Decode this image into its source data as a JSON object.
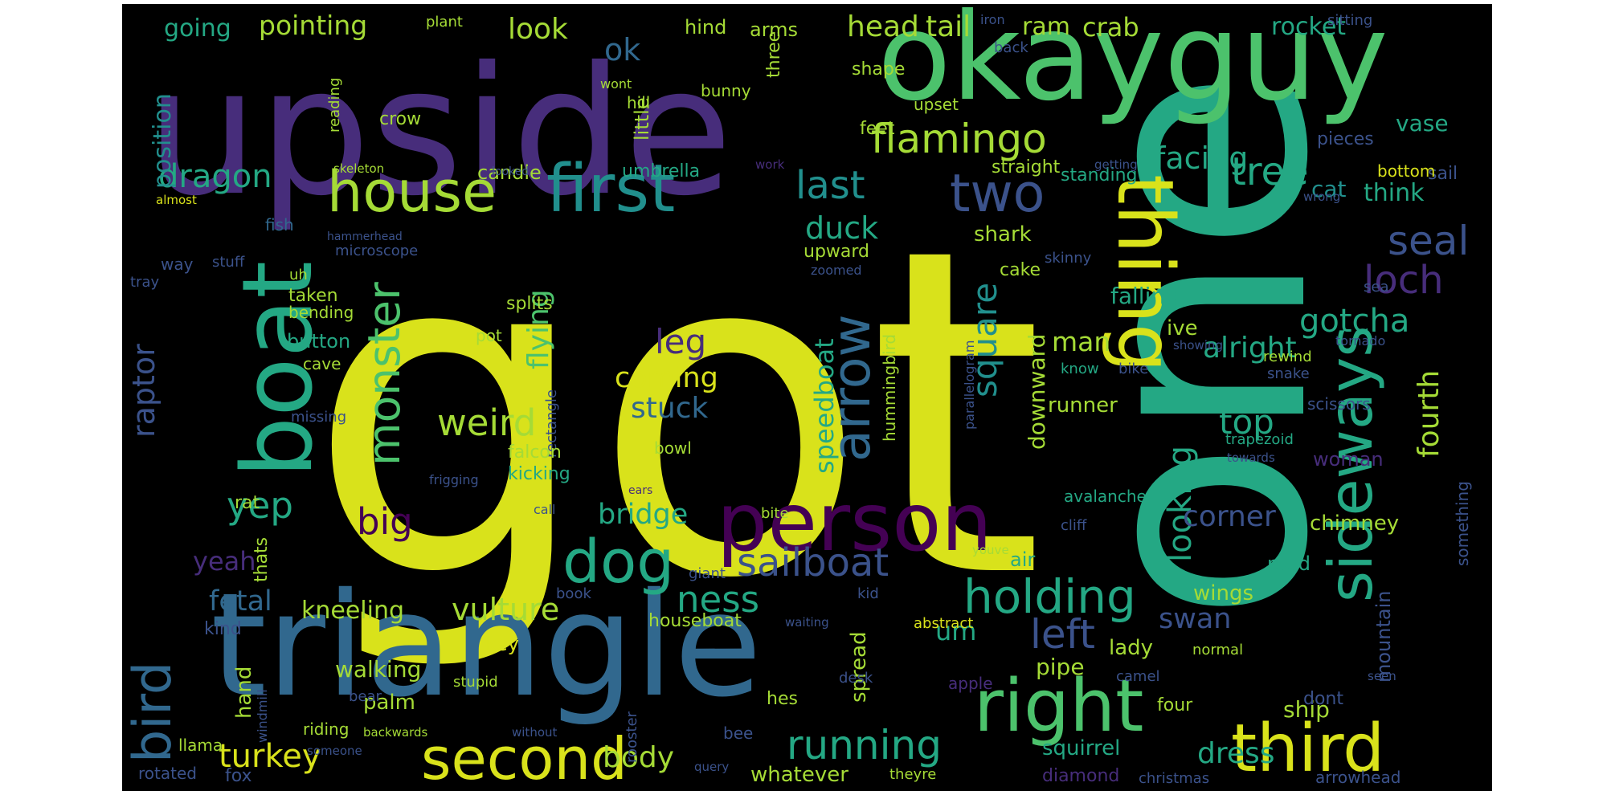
{
  "colors": {
    "background": "#000000",
    "page": "#ffffff",
    "yellow": "#d9e21b",
    "lime": "#a5db36",
    "green": "#4cc26c",
    "teal": "#24a884",
    "cyan": "#218f8d",
    "blue": "#31688e",
    "slate": "#3b528b",
    "purple": "#472d7b",
    "violet": "#440154"
  },
  "words": [
    "got",
    "one",
    "upside",
    "okayguy",
    "triangle",
    "boat",
    "house",
    "first",
    "thing",
    "sideways",
    "person",
    "right",
    "third",
    "second",
    "dog",
    "bird",
    "monster",
    "arrow",
    "flamingo",
    "tree",
    "two",
    "seal",
    "running",
    "holding",
    "left",
    "last",
    "sailboat",
    "dragon",
    "raptor",
    "turkey",
    "yep",
    "big",
    "weird",
    "leg",
    "square",
    "loch",
    "gotcha",
    "top",
    "looking",
    "fourth",
    "flying",
    "speedboat",
    "fetal",
    "vulture",
    "ness",
    "swan",
    "bridge",
    "corner",
    "alright",
    "facing",
    "duck",
    "coming",
    "stuck",
    "man",
    "head",
    "tail",
    "look",
    "going",
    "pointing",
    "ok",
    "position",
    "crab",
    "rocket",
    "ram",
    "yeah",
    "kneeling",
    "body",
    "dress",
    "whatever",
    "walking",
    "palm",
    "hand",
    "um",
    "think",
    "cat",
    "vase",
    "falling",
    "downward",
    "ive",
    "wings",
    "lady",
    "pipe",
    "ship",
    "spread",
    "mountain",
    "something",
    "chimney",
    "road",
    "woman",
    "runner",
    "hummingbird",
    "parallelogram",
    "rectangle",
    "diamond",
    "squirrel",
    "arms",
    "three",
    "hind",
    "shape",
    "candle",
    "umbrella",
    "straight",
    "standing",
    "sail",
    "bottom",
    "shark",
    "cake",
    "upward",
    "thats",
    "rat",
    "little",
    "crow",
    "hill",
    "bunny",
    "feet",
    "upset",
    "pieces",
    "plant",
    "wont",
    "reading",
    "sitting",
    "iron",
    "back",
    "skeleton",
    "almost",
    "fish",
    "stuff",
    "uh",
    "way",
    "tray",
    "microscope",
    "hammerhead",
    "getting",
    "wrong",
    "looked",
    "work",
    "skinny",
    "zoomed",
    "sea",
    "taken",
    "bending",
    "button",
    "cave",
    "pot",
    "splits",
    "know",
    "bike",
    "rewind",
    "snake",
    "tornado",
    "showing",
    "scissors",
    "trapezoid",
    "towards",
    "missing",
    "falcon",
    "kicking",
    "bowl",
    "bite",
    "avalanche",
    "cliff",
    "air",
    "youve",
    "frigging",
    "ears",
    "call",
    "giant",
    "book",
    "kid",
    "waiting",
    "abstract",
    "houseboat",
    "kind",
    "key",
    "stupid",
    "bear",
    "windmill",
    "riding",
    "hes",
    "desk",
    "apple",
    "camel",
    "normal",
    "seen",
    "four",
    "dont",
    "someone",
    "backwards",
    "without",
    "bee",
    "llama",
    "rooster",
    "rotated",
    "fox",
    "query",
    "theyre",
    "christmas",
    "arrowhead",
    "cat"
  ]
}
